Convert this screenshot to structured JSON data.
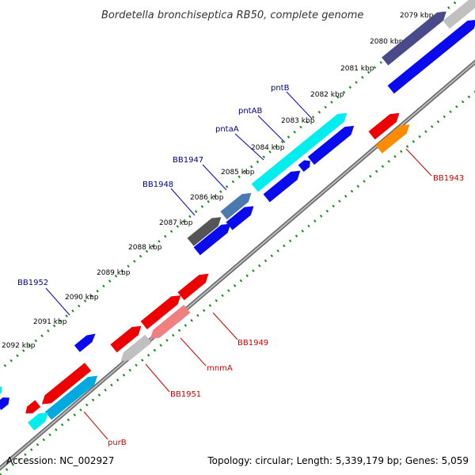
{
  "title": "Bordetella bronchiseptica RB50, complete genome",
  "footer": {
    "accession": "Accession: NC_002927",
    "summary": "Topology: circular; Length: 5,339,179 bp; Genes: 5,059"
  },
  "colors": {
    "backbone": "#888888",
    "tick": "#1a8a1a",
    "label_forward": "#00008b",
    "label_reverse": "#cc0000",
    "label_line_forward": "#0000cc",
    "label_line_reverse": "#cc0000"
  },
  "ticks": [
    {
      "label": "2079 kbp"
    },
    {
      "label": "2080 kbp"
    },
    {
      "label": "2081 kbp"
    },
    {
      "label": "2082 kbp"
    },
    {
      "label": "2083 kbp"
    },
    {
      "label": "2084 kbp"
    },
    {
      "label": "2085 kbp"
    },
    {
      "label": "2086 kbp"
    },
    {
      "label": "2087 kbp"
    },
    {
      "label": "2088 kbp"
    },
    {
      "label": "2089 kbp"
    },
    {
      "label": "2090 kbp"
    },
    {
      "label": "2091 kbp"
    },
    {
      "label": "2092 kbp"
    }
  ],
  "gene_labels": [
    {
      "text": "pntB",
      "strand": "forward"
    },
    {
      "text": "pntAB",
      "strand": "forward"
    },
    {
      "text": "pntaA",
      "strand": "forward"
    },
    {
      "text": "BB1947",
      "strand": "forward"
    },
    {
      "text": "BB1948",
      "strand": "forward"
    },
    {
      "text": "BB1952",
      "strand": "forward"
    },
    {
      "text": "BB1943",
      "strand": "reverse"
    },
    {
      "text": "BB1949",
      "strand": "reverse"
    },
    {
      "text": "mnmA",
      "strand": "reverse"
    },
    {
      "text": "BB1951",
      "strand": "reverse"
    },
    {
      "text": "purB",
      "strand": "reverse"
    }
  ]
}
